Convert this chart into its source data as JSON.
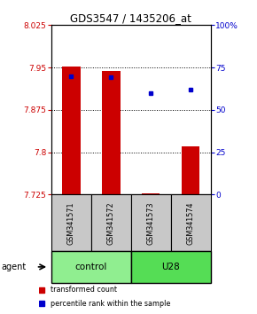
{
  "title": "GDS3547 / 1435206_at",
  "samples": [
    "GSM341571",
    "GSM341572",
    "GSM341573",
    "GSM341574"
  ],
  "red_values": [
    7.951,
    7.944,
    7.727,
    7.81
  ],
  "blue_values": [
    70.0,
    69.5,
    60.0,
    62.0
  ],
  "ylim_left": [
    7.725,
    8.025
  ],
  "ylim_right": [
    0,
    100
  ],
  "yticks_left": [
    7.725,
    7.8,
    7.875,
    7.95,
    8.025
  ],
  "yticks_right": [
    0,
    25,
    50,
    75,
    100
  ],
  "ytick_labels_right": [
    "0",
    "25",
    "50",
    "75",
    "100%"
  ],
  "bar_color": "#CC0000",
  "dot_color": "#0000CC",
  "bar_width": 0.45,
  "baseline": 7.725,
  "legend_red": "transformed count",
  "legend_blue": "percentile rank within the sample",
  "group_colors": [
    "#90EE90",
    "#55DD55"
  ],
  "group_labels": [
    "control",
    "U28"
  ],
  "sample_box_color": "#C8C8C8",
  "agent_label": "agent"
}
